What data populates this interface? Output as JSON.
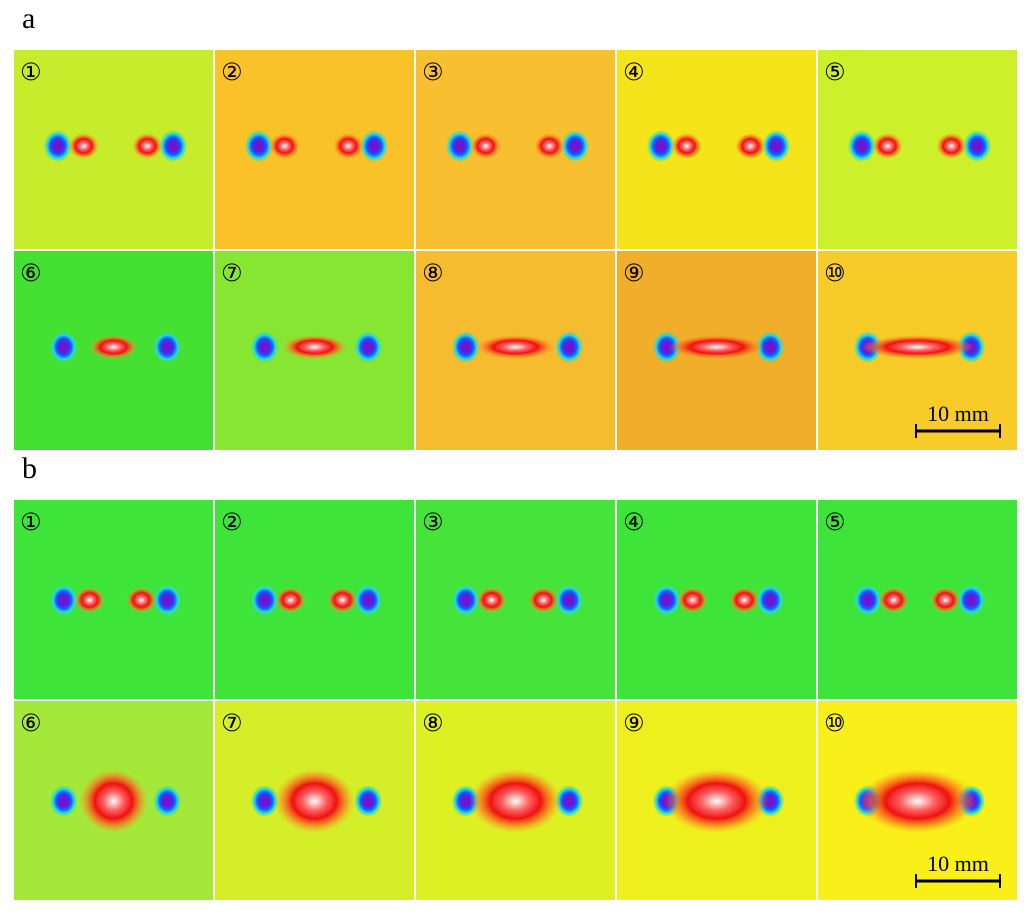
{
  "panels": [
    {
      "label": "a",
      "scale_bar": "10 mm",
      "tiles": [
        {
          "label": "①",
          "color": "#c6ec2c"
        },
        {
          "label": "②",
          "color": "#f8c228"
        },
        {
          "label": "③",
          "color": "#f8c030"
        },
        {
          "label": "④",
          "color": "#f6e41a"
        },
        {
          "label": "⑤",
          "color": "#cdf02a"
        },
        {
          "label": "⑥",
          "color": "#44e032"
        },
        {
          "label": "⑦",
          "color": "#86e632"
        },
        {
          "label": "⑧",
          "color": "#f6bc30"
        },
        {
          "label": "⑨",
          "color": "#f0ae2a"
        },
        {
          "label": "⑩",
          "color": "#f8cc28"
        }
      ]
    },
    {
      "label": "b",
      "scale_bar": "10 mm",
      "tiles": [
        {
          "label": "①",
          "color": "#3ee43a"
        },
        {
          "label": "②",
          "color": "#3ee43a"
        },
        {
          "label": "③",
          "color": "#46e43a"
        },
        {
          "label": "④",
          "color": "#3ee43a"
        },
        {
          "label": "⑤",
          "color": "#3ee43a"
        },
        {
          "label": "⑥",
          "color": "#a4e83a"
        },
        {
          "label": "⑦",
          "color": "#d4ee28"
        },
        {
          "label": "⑧",
          "color": "#dcf024"
        },
        {
          "label": "⑨",
          "color": "#eef01e"
        },
        {
          "label": "⑩",
          "color": "#f8f018"
        }
      ]
    }
  ]
}
